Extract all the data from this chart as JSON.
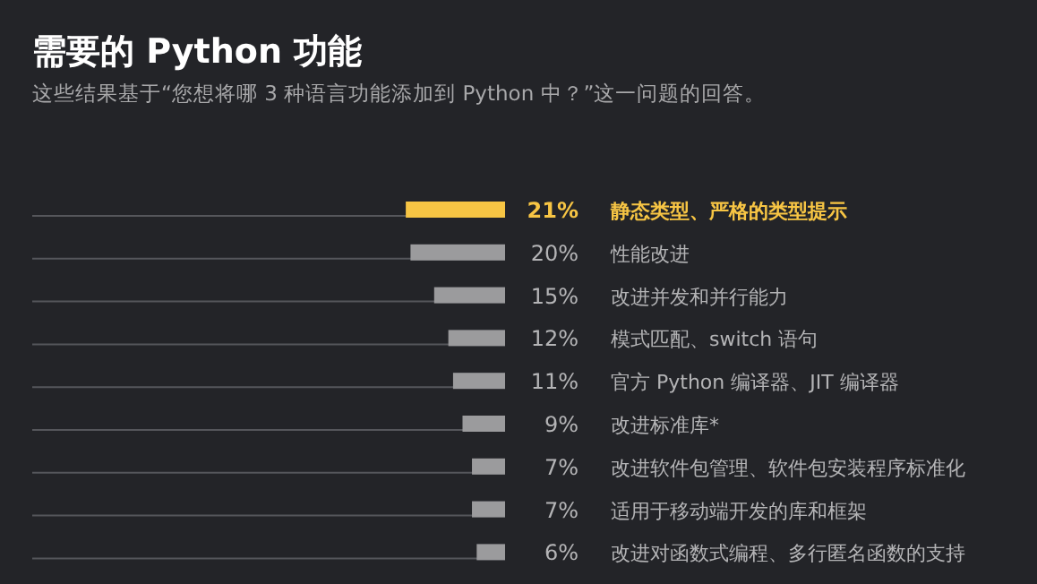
{
  "chart_data": {
    "type": "bar",
    "orientation": "horizontal",
    "title": "需要的 Python 功能",
    "subtitle": "这些结果基于“您想将哪 3 种语言功能添加到 Python 中？”这一问题的回答。",
    "categories": [
      "静态类型、严格的类型提示",
      "性能改进",
      "改进并发和并行能力",
      "模式匹配、switch 语句",
      "官方 Python 编译器、JIT 编译器",
      "改进标准库*",
      "改进软件包管理、软件包安装程序标准化",
      "适用于移动端开发的库和框架",
      "改进对函数式编程、多行匿名函数的支持"
    ],
    "values": [
      21,
      20,
      15,
      12,
      11,
      9,
      7,
      7,
      6
    ],
    "value_labels": [
      "21%",
      "20%",
      "15%",
      "12%",
      "11%",
      "9%",
      "7%",
      "7%",
      "6%"
    ],
    "colors": [
      "#f7c544",
      "#9b9b9d",
      "#9b9b9d",
      "#9b9b9d",
      "#9b9b9d",
      "#9b9b9d",
      "#9b9b9d",
      "#9b9b9d",
      "#9b9b9d"
    ],
    "xlim": [
      100,
      0
    ]
  }
}
